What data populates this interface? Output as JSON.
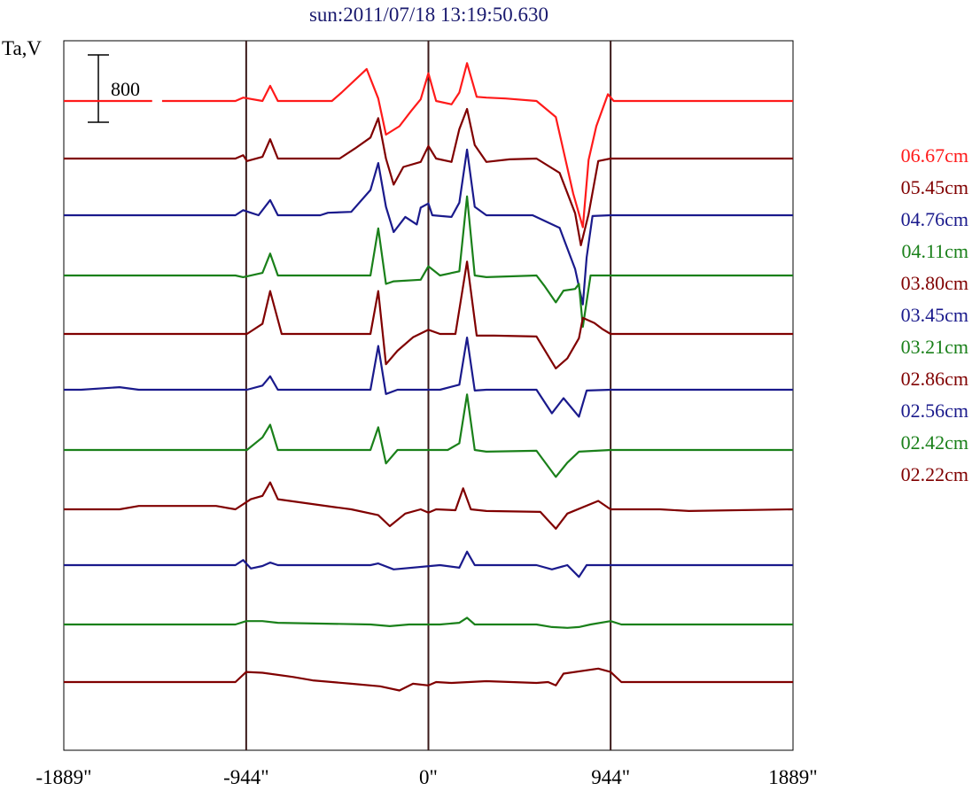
{
  "chart_data": {
    "type": "line",
    "title": "sun:2011/07/18 13:19:50.630",
    "ylabel": "Ta,V",
    "scale_bar_label": "800",
    "xlim": [
      -1889,
      1889
    ],
    "xticks": [
      {
        "value": -1889,
        "label": "-1889\""
      },
      {
        "value": -944,
        "label": "-944\""
      },
      {
        "value": 0,
        "label": "0\""
      },
      {
        "value": 944,
        "label": "944\""
      },
      {
        "value": 1889,
        "label": "1889\""
      }
    ],
    "vlines": [
      -944,
      0,
      944
    ],
    "series": [
      {
        "name": "06.67cm",
        "color": "#ff1a1a",
        "gap": [
          -1389,
          -1422
        ],
        "points": [
          [
            -1889,
            0
          ],
          [
            -1000,
            0
          ],
          [
            -960,
            40
          ],
          [
            -860,
            0
          ],
          [
            -820,
            180
          ],
          [
            -780,
            0
          ],
          [
            -500,
            0
          ],
          [
            -450,
            100
          ],
          [
            -320,
            380
          ],
          [
            -260,
            30
          ],
          [
            -220,
            -400
          ],
          [
            -150,
            -300
          ],
          [
            -90,
            -120
          ],
          [
            -40,
            20
          ],
          [
            0,
            330
          ],
          [
            40,
            0
          ],
          [
            120,
            -40
          ],
          [
            160,
            100
          ],
          [
            200,
            450
          ],
          [
            250,
            50
          ],
          [
            300,
            40
          ],
          [
            400,
            30
          ],
          [
            560,
            0
          ],
          [
            660,
            -190
          ],
          [
            750,
            -1100
          ],
          [
            800,
            -1500
          ],
          [
            830,
            -700
          ],
          [
            870,
            -300
          ],
          [
            930,
            80
          ],
          [
            960,
            0
          ],
          [
            1889,
            0
          ]
        ]
      },
      {
        "name": "05.45cm",
        "color": "#800000",
        "points": [
          [
            -1889,
            0
          ],
          [
            -1000,
            0
          ],
          [
            -960,
            40
          ],
          [
            -940,
            -30
          ],
          [
            -860,
            20
          ],
          [
            -820,
            230
          ],
          [
            -780,
            0
          ],
          [
            -460,
            0
          ],
          [
            -380,
            120
          ],
          [
            -300,
            250
          ],
          [
            -260,
            480
          ],
          [
            -220,
            0
          ],
          [
            -180,
            -310
          ],
          [
            -130,
            -100
          ],
          [
            -40,
            -40
          ],
          [
            0,
            150
          ],
          [
            40,
            0
          ],
          [
            120,
            -40
          ],
          [
            160,
            350
          ],
          [
            200,
            590
          ],
          [
            240,
            160
          ],
          [
            300,
            -40
          ],
          [
            420,
            -10
          ],
          [
            560,
            0
          ],
          [
            680,
            -170
          ],
          [
            760,
            -650
          ],
          [
            790,
            -1030
          ],
          [
            830,
            -660
          ],
          [
            880,
            -30
          ],
          [
            944,
            0
          ],
          [
            1889,
            0
          ]
        ]
      },
      {
        "name": "04.76cm",
        "color": "#1a1a8c",
        "points": [
          [
            -1889,
            0
          ],
          [
            -1000,
            0
          ],
          [
            -960,
            60
          ],
          [
            -920,
            30
          ],
          [
            -880,
            0
          ],
          [
            -820,
            180
          ],
          [
            -780,
            0
          ],
          [
            -560,
            0
          ],
          [
            -520,
            30
          ],
          [
            -400,
            40
          ],
          [
            -300,
            300
          ],
          [
            -260,
            620
          ],
          [
            -220,
            100
          ],
          [
            -180,
            -200
          ],
          [
            -120,
            -20
          ],
          [
            -60,
            -110
          ],
          [
            -40,
            90
          ],
          [
            0,
            140
          ],
          [
            20,
            0
          ],
          [
            120,
            -20
          ],
          [
            160,
            150
          ],
          [
            200,
            780
          ],
          [
            240,
            100
          ],
          [
            300,
            0
          ],
          [
            540,
            0
          ],
          [
            680,
            -150
          ],
          [
            760,
            -640
          ],
          [
            800,
            -1060
          ],
          [
            820,
            -500
          ],
          [
            850,
            -10
          ],
          [
            944,
            0
          ],
          [
            1889,
            0
          ]
        ]
      },
      {
        "name": "04.11cm",
        "color": "#1a801a",
        "points": [
          [
            -1889,
            0
          ],
          [
            -1000,
            0
          ],
          [
            -960,
            -20
          ],
          [
            -860,
            30
          ],
          [
            -820,
            260
          ],
          [
            -780,
            0
          ],
          [
            -300,
            0
          ],
          [
            -260,
            560
          ],
          [
            -220,
            -100
          ],
          [
            -180,
            -70
          ],
          [
            -40,
            -50
          ],
          [
            0,
            110
          ],
          [
            60,
            0
          ],
          [
            160,
            50
          ],
          [
            200,
            940
          ],
          [
            240,
            0
          ],
          [
            300,
            -20
          ],
          [
            560,
            0
          ],
          [
            600,
            -120
          ],
          [
            660,
            -320
          ],
          [
            700,
            -180
          ],
          [
            760,
            -160
          ],
          [
            780,
            -100
          ],
          [
            800,
            -610
          ],
          [
            840,
            0
          ],
          [
            900,
            0
          ],
          [
            1889,
            0
          ]
        ]
      },
      {
        "name": "03.80cm",
        "color": "#800000",
        "points": [
          [
            -1889,
            0
          ],
          [
            -1000,
            0
          ],
          [
            -940,
            0
          ],
          [
            -860,
            120
          ],
          [
            -820,
            510
          ],
          [
            -760,
            0
          ],
          [
            -500,
            0
          ],
          [
            -300,
            0
          ],
          [
            -260,
            510
          ],
          [
            -220,
            -360
          ],
          [
            -160,
            -200
          ],
          [
            -80,
            -40
          ],
          [
            0,
            50
          ],
          [
            60,
            0
          ],
          [
            140,
            0
          ],
          [
            200,
            860
          ],
          [
            250,
            -20
          ],
          [
            340,
            -20
          ],
          [
            560,
            -30
          ],
          [
            660,
            -410
          ],
          [
            720,
            -290
          ],
          [
            780,
            -50
          ],
          [
            800,
            190
          ],
          [
            860,
            130
          ],
          [
            900,
            60
          ],
          [
            944,
            0
          ],
          [
            1889,
            0
          ]
        ]
      },
      {
        "name": "03.45cm",
        "color": "#1a1a8c",
        "points": [
          [
            -1889,
            0
          ],
          [
            -1800,
            0
          ],
          [
            -1600,
            30
          ],
          [
            -1500,
            0
          ],
          [
            -940,
            0
          ],
          [
            -860,
            50
          ],
          [
            -820,
            160
          ],
          [
            -780,
            0
          ],
          [
            -300,
            0
          ],
          [
            -260,
            520
          ],
          [
            -220,
            -50
          ],
          [
            -160,
            0
          ],
          [
            60,
            0
          ],
          [
            160,
            60
          ],
          [
            200,
            620
          ],
          [
            240,
            -10
          ],
          [
            300,
            0
          ],
          [
            560,
            0
          ],
          [
            640,
            -280
          ],
          [
            700,
            -100
          ],
          [
            780,
            -320
          ],
          [
            820,
            -10
          ],
          [
            944,
            0
          ],
          [
            1889,
            0
          ]
        ]
      },
      {
        "name": "03.21cm",
        "color": "#1a801a",
        "points": [
          [
            -1889,
            0
          ],
          [
            -1000,
            0
          ],
          [
            -940,
            0
          ],
          [
            -860,
            150
          ],
          [
            -820,
            300
          ],
          [
            -780,
            0
          ],
          [
            -300,
            0
          ],
          [
            -260,
            270
          ],
          [
            -220,
            -160
          ],
          [
            -160,
            0
          ],
          [
            100,
            0
          ],
          [
            160,
            80
          ],
          [
            200,
            660
          ],
          [
            240,
            0
          ],
          [
            300,
            -20
          ],
          [
            560,
            -10
          ],
          [
            660,
            -320
          ],
          [
            720,
            -150
          ],
          [
            780,
            -20
          ],
          [
            944,
            0
          ],
          [
            1889,
            0
          ]
        ]
      },
      {
        "name": "02.86cm",
        "color": "#800000",
        "points": [
          [
            -1889,
            0
          ],
          [
            -1600,
            0
          ],
          [
            -1500,
            40
          ],
          [
            -1100,
            40
          ],
          [
            -1000,
            0
          ],
          [
            -920,
            120
          ],
          [
            -860,
            160
          ],
          [
            -820,
            320
          ],
          [
            -780,
            120
          ],
          [
            -500,
            30
          ],
          [
            -400,
            0
          ],
          [
            -260,
            -70
          ],
          [
            -200,
            -200
          ],
          [
            -120,
            -50
          ],
          [
            -40,
            0
          ],
          [
            0,
            -40
          ],
          [
            40,
            0
          ],
          [
            140,
            -10
          ],
          [
            180,
            250
          ],
          [
            220,
            0
          ],
          [
            300,
            -20
          ],
          [
            580,
            -30
          ],
          [
            660,
            -230
          ],
          [
            720,
            -50
          ],
          [
            880,
            100
          ],
          [
            944,
            0
          ],
          [
            1200,
            0
          ],
          [
            1350,
            -20
          ],
          [
            1889,
            0
          ]
        ]
      },
      {
        "name": "02.56cm",
        "color": "#1a1a8c",
        "points": [
          [
            -1889,
            0
          ],
          [
            -1000,
            0
          ],
          [
            -960,
            60
          ],
          [
            -920,
            -40
          ],
          [
            -860,
            -10
          ],
          [
            -820,
            30
          ],
          [
            -780,
            0
          ],
          [
            -300,
            0
          ],
          [
            -260,
            20
          ],
          [
            -180,
            -50
          ],
          [
            60,
            0
          ],
          [
            160,
            -30
          ],
          [
            200,
            160
          ],
          [
            240,
            0
          ],
          [
            560,
            0
          ],
          [
            640,
            -50
          ],
          [
            720,
            0
          ],
          [
            780,
            -140
          ],
          [
            820,
            0
          ],
          [
            944,
            0
          ],
          [
            1889,
            0
          ]
        ]
      },
      {
        "name": "02.42cm",
        "color": "#1a801a",
        "points": [
          [
            -1889,
            0
          ],
          [
            -1000,
            0
          ],
          [
            -944,
            40
          ],
          [
            -860,
            40
          ],
          [
            -780,
            20
          ],
          [
            -300,
            0
          ],
          [
            -200,
            -20
          ],
          [
            -100,
            0
          ],
          [
            60,
            0
          ],
          [
            160,
            20
          ],
          [
            200,
            80
          ],
          [
            240,
            0
          ],
          [
            560,
            0
          ],
          [
            640,
            -30
          ],
          [
            720,
            -40
          ],
          [
            780,
            -30
          ],
          [
            840,
            0
          ],
          [
            944,
            40
          ],
          [
            1000,
            0
          ],
          [
            1889,
            0
          ]
        ]
      },
      {
        "name": "02.22cm",
        "color": "#800000",
        "points": [
          [
            -1889,
            0
          ],
          [
            -1000,
            0
          ],
          [
            -944,
            120
          ],
          [
            -860,
            110
          ],
          [
            -700,
            60
          ],
          [
            -600,
            20
          ],
          [
            -400,
            -20
          ],
          [
            -250,
            -50
          ],
          [
            -150,
            -100
          ],
          [
            -80,
            -20
          ],
          [
            0,
            -40
          ],
          [
            40,
            0
          ],
          [
            120,
            -10
          ],
          [
            300,
            10
          ],
          [
            560,
            -10
          ],
          [
            620,
            0
          ],
          [
            660,
            -40
          ],
          [
            700,
            100
          ],
          [
            880,
            160
          ],
          [
            944,
            120
          ],
          [
            1000,
            0
          ],
          [
            1889,
            0
          ]
        ]
      }
    ]
  }
}
